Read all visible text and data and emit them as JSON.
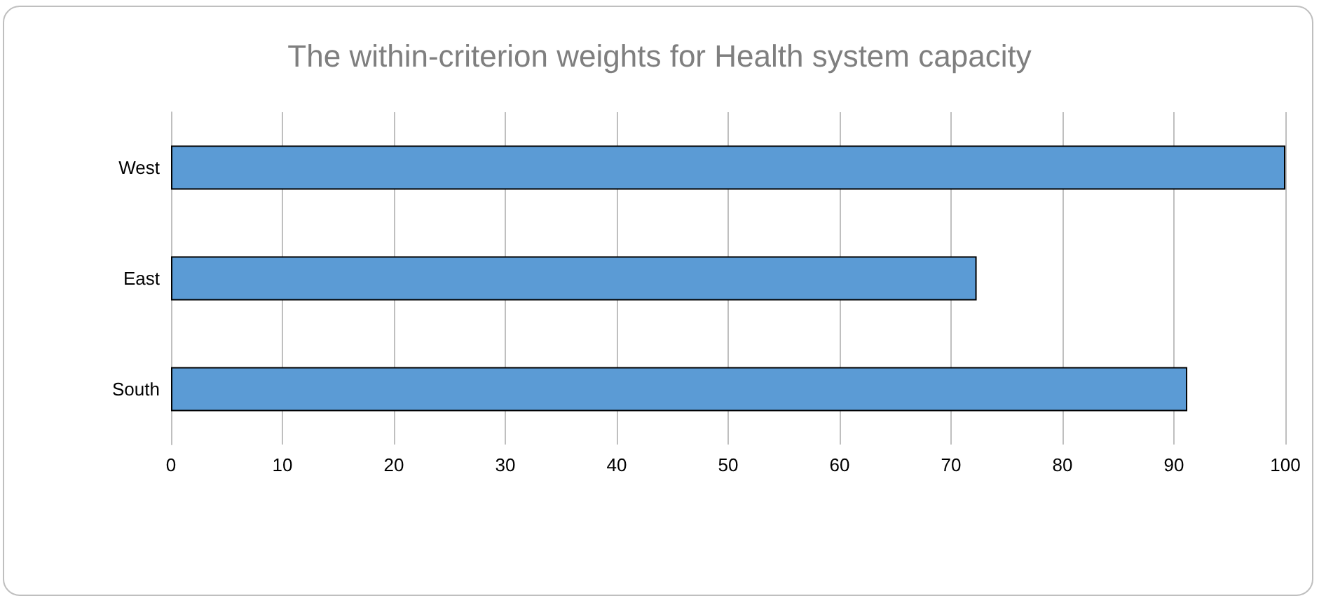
{
  "chart_data": {
    "type": "bar",
    "orientation": "horizontal",
    "title": "The within-criterion weights for Health system capacity",
    "categories": [
      "West",
      "East",
      "South"
    ],
    "values": [
      100,
      72.3,
      91.2
    ],
    "color": "#5b9bd5",
    "xlim": [
      0,
      100
    ],
    "xticks": [
      0,
      10,
      20,
      30,
      40,
      50,
      60,
      70,
      80,
      90,
      100
    ],
    "grid": "x"
  }
}
